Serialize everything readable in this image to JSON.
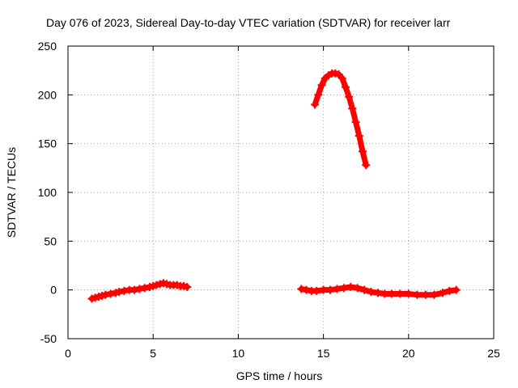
{
  "chart_data": {
    "type": "scatter",
    "title": "Day 076 of 2023, Sidereal Day-to-day VTEC variation (SDTVAR) for receiver larr",
    "xlabel": "GPS time / hours",
    "ylabel": "SDTVAR / TECUs",
    "xlim": [
      0,
      25
    ],
    "ylim": [
      -50,
      250
    ],
    "x_ticks": [
      0,
      5,
      10,
      15,
      20,
      25
    ],
    "y_ticks": [
      -50,
      0,
      50,
      100,
      150,
      200,
      250
    ],
    "grid": true,
    "series_color": "#ff0000",
    "series": [
      {
        "segment": "early",
        "x": [
          1.4,
          1.6,
          1.8,
          2.0,
          2.2,
          2.5,
          2.8,
          3.0,
          3.3,
          3.6,
          3.9,
          4.2,
          4.5,
          4.8,
          5.0,
          5.2,
          5.4,
          5.6,
          5.8,
          6.0,
          6.2,
          6.4,
          6.6,
          6.8,
          7.0
        ],
        "y": [
          -9,
          -8,
          -7,
          -6,
          -5,
          -4,
          -3,
          -2,
          -1,
          0,
          0,
          1,
          2,
          3,
          4,
          5,
          6,
          7,
          6,
          5,
          5,
          5,
          4,
          4,
          3
        ]
      },
      {
        "segment": "peak",
        "x": [
          14.5,
          14.7,
          14.9,
          15.1,
          15.3,
          15.5,
          15.7,
          15.9,
          16.1,
          16.3,
          16.5,
          16.7,
          16.9,
          17.1,
          17.3,
          17.5
        ],
        "y": [
          190,
          200,
          210,
          217,
          220,
          222,
          222,
          221,
          217,
          208,
          198,
          186,
          172,
          158,
          142,
          128
        ]
      },
      {
        "segment": "late",
        "x": [
          13.7,
          14.0,
          14.3,
          14.6,
          15.0,
          15.4,
          15.8,
          16.2,
          16.6,
          17.0,
          17.4,
          17.8,
          18.2,
          18.6,
          19.0,
          19.5,
          20.0,
          20.5,
          21.0,
          21.5,
          22.0,
          22.4,
          22.8
        ],
        "y": [
          1,
          0,
          -1,
          -1,
          0,
          0,
          1,
          2,
          3,
          2,
          0,
          -2,
          -3,
          -4,
          -4,
          -4,
          -4,
          -5,
          -5,
          -5,
          -3,
          -1,
          0
        ]
      }
    ]
  }
}
